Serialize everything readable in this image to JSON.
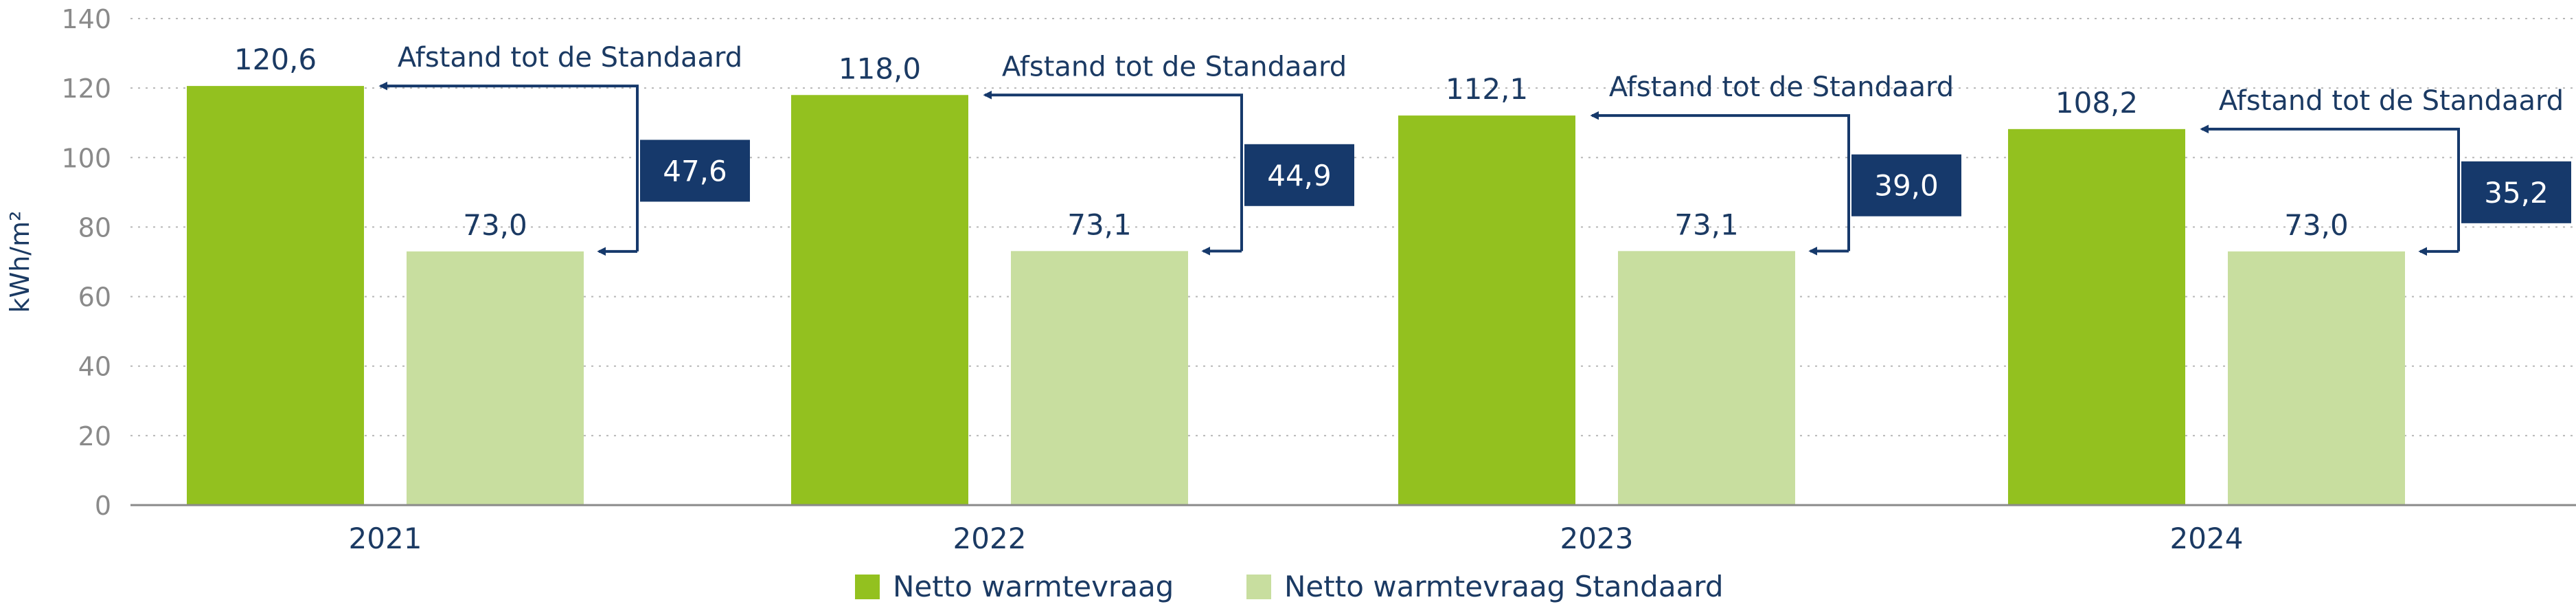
{
  "colors": {
    "netto": "#93c11f",
    "standaard": "#c8de9f",
    "accent": "#16396b",
    "axis": "#8a8a8a",
    "text": "#1b3a63",
    "grid": "#b8b8b8"
  },
  "chart_data": {
    "type": "bar",
    "title": "",
    "xlabel": "",
    "ylabel": "kWh/m²",
    "ylim": [
      0,
      140
    ],
    "yticks": [
      "0",
      "20",
      "40",
      "60",
      "80",
      "100",
      "120",
      "140"
    ],
    "grid": true,
    "legend_position": "bottom-center",
    "categories": [
      "2021",
      "2022",
      "2023",
      "2024"
    ],
    "series": [
      {
        "name": "Netto warmtevraag",
        "values": [
          120.6,
          118.0,
          112.1,
          108.2
        ],
        "labels": [
          "120,6",
          "118,0",
          "112,1",
          "108,2"
        ]
      },
      {
        "name": "Netto warmtevraag Standaard",
        "values": [
          73.0,
          73.1,
          73.1,
          73.0
        ],
        "labels": [
          "73,0",
          "73,1",
          "73,1",
          "73,0"
        ]
      }
    ],
    "annotations": [
      {
        "text": "Afstand tot de Standaard",
        "difference": "47,6"
      },
      {
        "text": "Afstand tot de Standaard",
        "difference": "44,9"
      },
      {
        "text": "Afstand tot de Standaard",
        "difference": "39,0"
      },
      {
        "text": "Afstand tot de Standaard",
        "difference": "35,2"
      }
    ]
  }
}
